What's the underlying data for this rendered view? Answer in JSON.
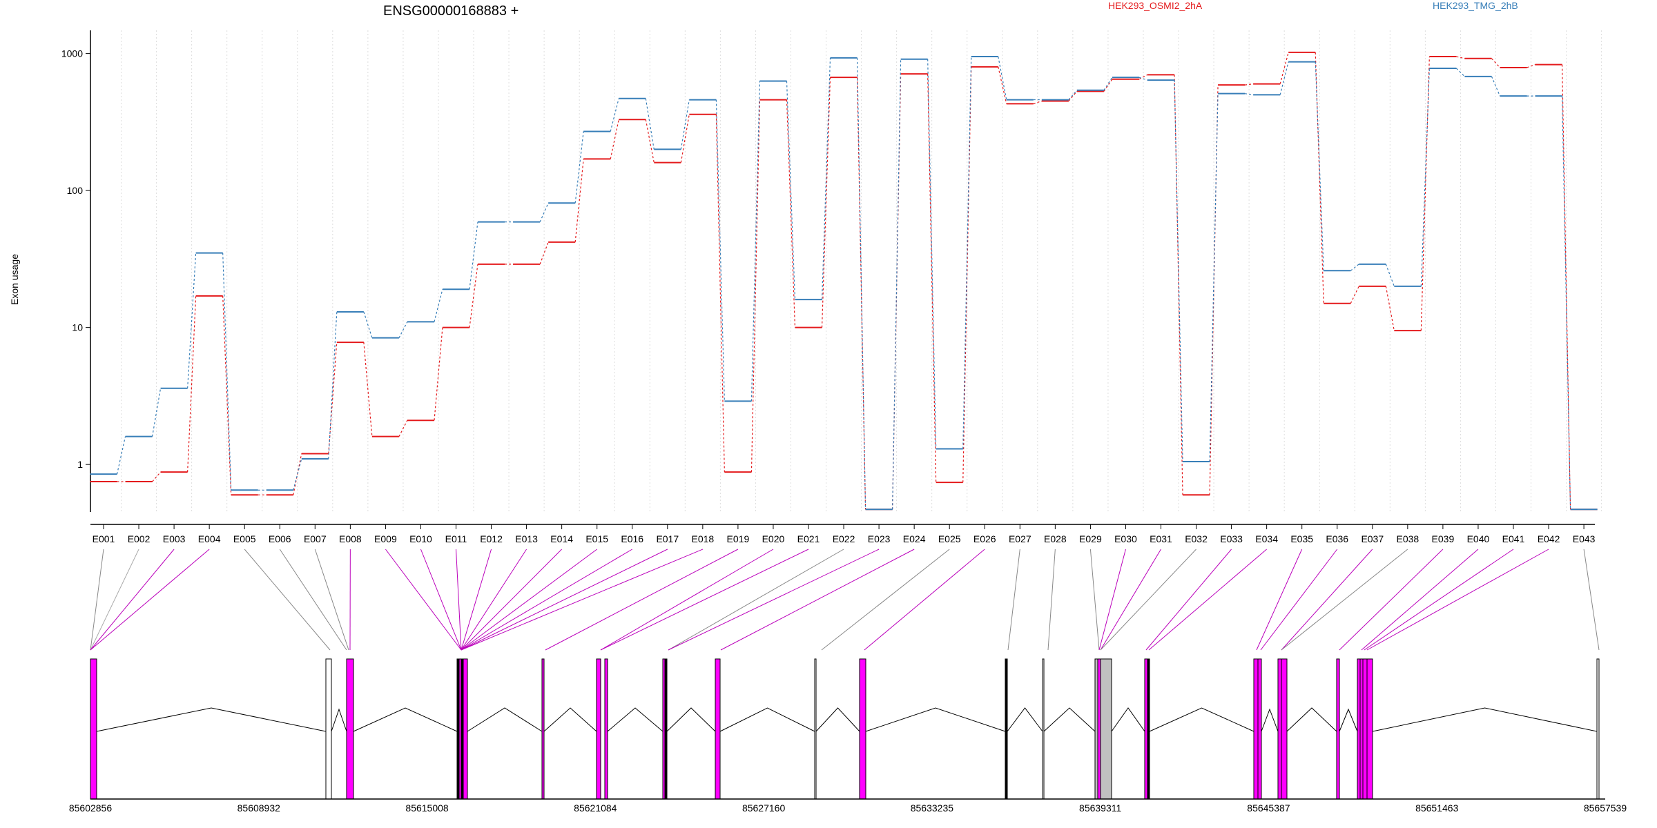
{
  "chart_data": {
    "type": "line",
    "title": "ENSG00000168883 +",
    "ylabel": "Exon usage",
    "xlabel": "",
    "y_scale": "log",
    "ylim": [
      0.45,
      1300
    ],
    "y_ticks": [
      1,
      10,
      100,
      1000
    ],
    "y_tick_labels": [
      "1",
      "10",
      "100",
      "1000"
    ],
    "grid": "vertical dotted lines at each exon",
    "legend_placement": "top-right",
    "categories": [
      "E001",
      "E002",
      "E003",
      "E004",
      "E005",
      "E006",
      "E007",
      "E008",
      "E009",
      "E010",
      "E011",
      "E012",
      "E013",
      "E014",
      "E015",
      "E016",
      "E017",
      "E018",
      "E019",
      "E020",
      "E021",
      "E022",
      "E023",
      "E024",
      "E025",
      "E026",
      "E027",
      "E028",
      "E029",
      "E030",
      "E031",
      "E032",
      "E033",
      "E034",
      "E035",
      "E036",
      "E037",
      "E038",
      "E039",
      "E040",
      "E041",
      "E042",
      "E043"
    ],
    "series": [
      {
        "name": "HEK293_OSMI2_2hA",
        "color": "#e41a1c",
        "values": [
          0.75,
          0.75,
          0.88,
          17,
          0.6,
          0.6,
          1.2,
          7.8,
          1.6,
          2.1,
          10,
          29,
          29,
          42,
          170,
          330,
          160,
          360,
          0.88,
          460,
          10,
          670,
          0.47,
          710,
          0.74,
          800,
          430,
          450,
          530,
          650,
          700,
          0.6,
          590,
          600,
          1020,
          15,
          20,
          9.5,
          950,
          920,
          790,
          830,
          0.47
        ]
      },
      {
        "name": "HEK293_TMG_2hB",
        "color": "#377eb8",
        "values": [
          0.85,
          1.6,
          3.6,
          35,
          0.65,
          0.65,
          1.1,
          13,
          8.4,
          11,
          19,
          59,
          59,
          81,
          270,
          470,
          200,
          460,
          2.9,
          630,
          16,
          930,
          0.47,
          910,
          1.3,
          950,
          460,
          460,
          540,
          670,
          640,
          1.05,
          510,
          500,
          870,
          26,
          29,
          20,
          780,
          680,
          490,
          490,
          0.47
        ]
      }
    ],
    "gene_model": {
      "coordinate_ticks": [
        "85602856",
        "85608932",
        "85615008",
        "85621084",
        "85627160",
        "85633235",
        "85639311",
        "85645387",
        "85651463",
        "85657539"
      ],
      "intron_color": "#000000",
      "exon_colors": {
        "differential": "#ff00ff",
        "other": "#ffffff",
        "highlight": "#c0c0c0"
      }
    }
  }
}
